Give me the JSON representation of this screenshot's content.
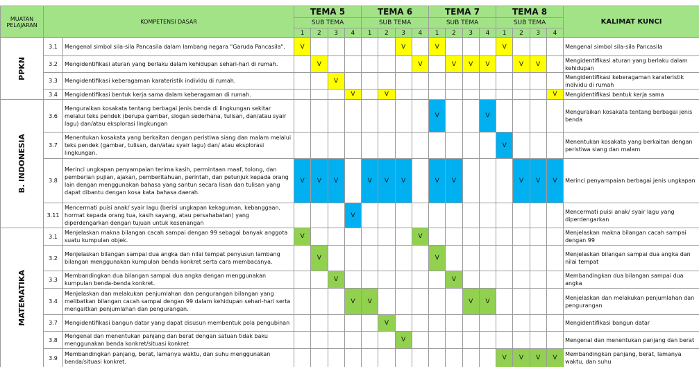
{
  "header": {
    "muatan": "MUATAN PELAJARAN",
    "kompetensi": "KOMPETENSI DASAR",
    "sub_tema": "SUB TEMA",
    "kalimat": "KALIMAT KUNCI",
    "temas": [
      "TEMA 5",
      "TEMA 6",
      "TEMA 7",
      "TEMA 8"
    ],
    "sub_numbers": [
      "1",
      "2",
      "3",
      "4"
    ]
  },
  "subjects": [
    {
      "name": "PPKN",
      "color": "#ffff00",
      "rows": [
        {
          "code": "3.1",
          "text": "Mengenal simbol sila-sila Pancasila dalam lambang negara \"Garuda Pancasila\".",
          "marks": [
            "V",
            null,
            null,
            null,
            null,
            null,
            "V",
            null,
            "V",
            null,
            null,
            null,
            "V",
            null,
            null,
            null
          ],
          "key": "Mengenal simbol sila-sila Pancasila"
        },
        {
          "code": "3.2",
          "text": "Mengidentifikasi aturan yang berlaku dalam kehidupan sehari-hari di rumah.",
          "marks": [
            null,
            "V",
            null,
            null,
            null,
            null,
            null,
            "V",
            null,
            "V",
            "V",
            "V",
            null,
            "V",
            "V",
            null
          ],
          "key": "Mengidentifikasi aturan yang berlaku dalam kehidupan"
        },
        {
          "code": "3.3",
          "text": "Mengidentifikasi keberagaman karateristik individu di rumah.",
          "marks": [
            null,
            null,
            "V",
            null,
            null,
            null,
            null,
            null,
            null,
            null,
            null,
            null,
            null,
            null,
            null,
            null
          ],
          "key": "Mengidentifikasi keberagaman karateristik individu di rumah"
        },
        {
          "code": "3.4",
          "text": "Mengidentifikasi bentuk kerja sama dalam keberagaman di rumah.",
          "marks": [
            null,
            null,
            null,
            "V",
            null,
            "V",
            null,
            null,
            null,
            null,
            null,
            null,
            null,
            null,
            null,
            "V"
          ],
          "key": "Mengidentifikasi bentuk kerja sama"
        }
      ]
    },
    {
      "name": "B. INDONESIA",
      "color": "#00b0f0",
      "rows": [
        {
          "code": "3.6",
          "text": "Menguraikan kosakata tentang berbagai jenis benda di lingkungan sekitar melalui teks pendek (berupa gambar, slogan sederhana, tulisan, dan/atau syair lagu) dan/atau eksplorasi lingkungan",
          "marks": [
            null,
            null,
            null,
            null,
            null,
            null,
            null,
            null,
            "V",
            null,
            null,
            "V",
            null,
            null,
            null,
            null
          ],
          "key": "Menguraikan kosakata tentang berbagai jenis benda"
        },
        {
          "code": "3.7",
          "text": "Menentukan kosakata yang berkaitan dengan peristiwa siang dan malam melalui teks pendek (gambar, tulisan, dan/atau syair lagu) dan/ atau eksplorasi lingkungan.",
          "marks": [
            null,
            null,
            null,
            null,
            null,
            null,
            null,
            null,
            null,
            null,
            null,
            null,
            "V",
            null,
            null,
            null
          ],
          "key": "Menentukan kosakata yang berkaitan dengan peristiwa siang dan malam"
        },
        {
          "code": "3.8",
          "text": "Merinci ungkapan penyampaian terima kasih, permintaan maaf, tolong, dan pemberian pujian, ajakan, pemberitahuan, perintah, dan petunjuk kepada orang lain dengan menggunakan bahasa yang santun secara lisan dan tulisan yang dapat dibantu dengan kosa kata bahasa daerah.",
          "marks": [
            "V",
            "V",
            "V",
            null,
            "V",
            "V",
            "V",
            null,
            "V",
            "V",
            null,
            null,
            null,
            "V",
            "V",
            "V"
          ],
          "key": "Merinci penyampaian berbagai jenis ungkapan"
        },
        {
          "code": "3.11",
          "text": "Mencermati puisi anak/ syair lagu (berisi ungkapan kekaguman, kebanggaan, hormat kepada orang tua, kasih sayang, atau persahabatan) yang diperdengarkan dengan tujuan untuk kesenangan",
          "marks": [
            null,
            null,
            null,
            "V",
            null,
            null,
            null,
            null,
            null,
            null,
            null,
            null,
            null,
            null,
            null,
            null
          ],
          "key": "Mencermati puisi anak/ syair lagu yang diperdengarkan"
        }
      ]
    },
    {
      "name": "MATEMATIKA",
      "color": "#92d050",
      "rows": [
        {
          "code": "3.1",
          "text": "Menjelaskan makna bilangan cacah sampai dengan 99 sebagai banyak anggota suatu kumpulan objek.",
          "marks": [
            "V",
            null,
            null,
            null,
            null,
            null,
            null,
            "V",
            null,
            null,
            null,
            null,
            null,
            null,
            null,
            null
          ],
          "key": "Menjelaskan makna bilangan cacah sampai dengan 99"
        },
        {
          "code": "3.2",
          "text": "Menjelaskan bilangan sampai dua angka dan nilai tempat penyusun lambang bilangan menggunakan kumpulan benda konkret serta cara membacanya.",
          "marks": [
            null,
            "V",
            null,
            null,
            null,
            null,
            null,
            null,
            "V",
            null,
            null,
            null,
            null,
            null,
            null,
            null
          ],
          "key": "Menjelaskan bilangan sampai dua angka dan nilai tempat"
        },
        {
          "code": "3.3",
          "text": "Membandingkan dua bilangan sampai dua angka dengan menggunakan kumpulan benda-benda konkret.",
          "marks": [
            null,
            null,
            "V",
            null,
            null,
            null,
            null,
            null,
            null,
            "V",
            null,
            null,
            null,
            null,
            null,
            null
          ],
          "key": "Membandingkan dua bilangan sampai dua angka"
        },
        {
          "code": "3.4",
          "text": "Menjelaskan dan melakukan penjumlahan dan pengurangan bilangan yang melibatkan bilangan cacah sampai dengan 99 dalam kehidupan sehari-hari serta mengaitkan penjumlahan dan pengurangan.",
          "marks": [
            null,
            null,
            null,
            "V",
            "V",
            null,
            null,
            null,
            null,
            null,
            "V",
            "V",
            null,
            null,
            null,
            null
          ],
          "key": "Menjelaskan dan melakukan penjumlahan dan pengurangan"
        },
        {
          "code": "3.7",
          "text": "Mengidentifikasi bangun datar yang dapat disusun membentuk pola pengubinan",
          "marks": [
            null,
            null,
            null,
            null,
            null,
            "V",
            null,
            null,
            null,
            null,
            null,
            null,
            null,
            null,
            null,
            null
          ],
          "key": "Mengidentifikasi bangun datar"
        },
        {
          "code": "3.8",
          "text": "Mengenal dan menentukan panjang dan berat dengan satuan tidak baku menggunakan benda konkret/situasi konkret",
          "marks": [
            null,
            null,
            null,
            null,
            null,
            null,
            "V",
            null,
            null,
            null,
            null,
            null,
            null,
            null,
            null,
            null
          ],
          "key": "Mengenal dan menentukan panjang dan berat"
        },
        {
          "code": "3.9",
          "text": "Membandingkan panjang, berat, lamanya waktu, dan suhu menggunakan benda/situasi konkret.",
          "marks": [
            null,
            null,
            null,
            null,
            null,
            null,
            null,
            null,
            null,
            null,
            null,
            null,
            "V",
            "V",
            "V",
            "V"
          ],
          "key": "Membandingkan panjang, berat, lamanya waktu, dan suhu"
        }
      ]
    }
  ]
}
